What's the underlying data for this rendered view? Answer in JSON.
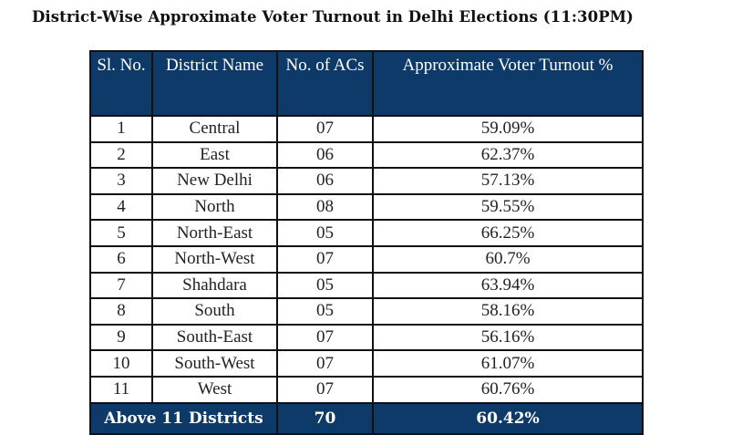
{
  "title": "District-Wise Approximate Voter Turnout in Delhi Elections (11:30PM)",
  "table": {
    "headers": [
      "Sl. No.",
      "District Name",
      "No. of ACs",
      "Approximate Voter Turnout %"
    ],
    "rows": [
      [
        "1",
        "Central",
        "07",
        "59.09%"
      ],
      [
        "2",
        "East",
        "06",
        "62.37%"
      ],
      [
        "3",
        "New Delhi",
        "06",
        "57.13%"
      ],
      [
        "4",
        "North",
        "08",
        "59.55%"
      ],
      [
        "5",
        "North-East",
        "05",
        "66.25%"
      ],
      [
        "6",
        "North-West",
        "07",
        "60.7%"
      ],
      [
        "7",
        "Shahdara",
        "05",
        "63.94%"
      ],
      [
        "8",
        "South",
        "05",
        "58.16%"
      ],
      [
        "9",
        "South-East",
        "07",
        "56.16%"
      ],
      [
        "10",
        "South-West",
        "07",
        "61.07%"
      ],
      [
        "11",
        "West",
        "07",
        "60.76%"
      ]
    ],
    "total": {
      "label": "Above 11 Districts",
      "acs": "70",
      "turnout": "60.42%"
    }
  },
  "colors": {
    "header_bg": "#0e3a69"
  }
}
